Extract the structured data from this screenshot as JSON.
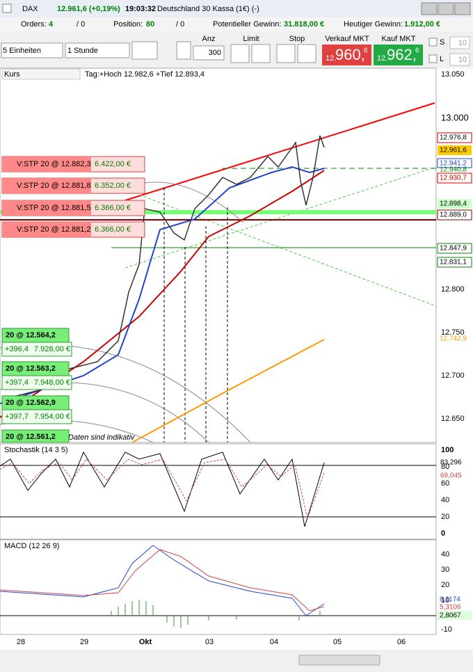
{
  "header": {
    "instrument": "DAX",
    "price": "12.961,6 (+0,19%)",
    "time": "19:03:32",
    "name": "Deutschland 30 Kassa (1€) (-)"
  },
  "status": {
    "orders_label": "Orders:",
    "orders": "4",
    "orders_open": "/ 0",
    "position_label": "Position:",
    "position": "80",
    "position_open": "/ 0",
    "potential_label": "Potentieller Gewinn:",
    "potential": "31.818,00 €",
    "today_label": "Heutiger Gewinn:",
    "today": "1.912,00 €"
  },
  "controls": {
    "units": "5 Einheiten",
    "interval": "1 Stunde",
    "qty_label": "Anz",
    "qty": "300",
    "limit_label": "Limit",
    "stop_label": "Stop",
    "sell_label": "Verkauf MKT",
    "sell": [
      "12.",
      "960,",
      "6"
    ],
    "buy_label": "Kauf MKT",
    "buy": [
      "12.",
      "962,",
      "6"
    ],
    "s_label": "S",
    "s_value": "10",
    "l_label": "L",
    "l_value": "10"
  },
  "chart": {
    "label": "Kurs",
    "info": "Tag:+Hoch 12.982,6 +Tief 12.893,4",
    "note": "Daten sind indikativ",
    "yticks": [
      "13.050",
      "13.000",
      "12.800",
      "12.750",
      "12.700",
      "12.650"
    ],
    "tags": [
      "12.976,8",
      "12.961,6",
      "12.941,2",
      "12.940,8",
      "12.930,7",
      "12.898,4",
      "12.889,0",
      "12.847,9",
      "12.831,1",
      "12.742,9"
    ],
    "stops": [
      {
        "label": "V:STP 20 @ 12.882,3",
        "value": "6.422,00 €"
      },
      {
        "label": "V:STP 20 @ 12.881,8",
        "value": "6.352,00 €"
      },
      {
        "label": "V:STP 20 @ 12.881,5",
        "value": "6.366,00 €"
      },
      {
        "label": "V:STP 20 @ 12.881,2",
        "value": "6.366,00 €"
      }
    ],
    "positions": [
      {
        "label": "20 @ 12.564,2",
        "points": "+396,4",
        "value": "7.928,00 €"
      },
      {
        "label": "20 @ 12.563,2",
        "points": "+397,4",
        "value": "7.948,00 €"
      },
      {
        "label": "20 @ 12.562,9",
        "points": "+397,7",
        "value": "7.954,00 €"
      },
      {
        "label": "20 @ 12.561,2"
      }
    ]
  },
  "stoch": {
    "label": "Stochastik (14 3 5)",
    "yticks": [
      "100",
      "80",
      "60",
      "40",
      "20",
      "0"
    ],
    "tags": [
      "83,296",
      "69,045"
    ]
  },
  "macd": {
    "label": "MACD (12 26 9)",
    "yticks": [
      "40",
      "30",
      "20",
      "10",
      "0",
      "-10"
    ],
    "tags": [
      "8,1174",
      "5,3106",
      "2,8067"
    ]
  },
  "xaxis": [
    "28",
    "29",
    "Okt",
    "03",
    "04",
    "05",
    "06"
  ]
}
